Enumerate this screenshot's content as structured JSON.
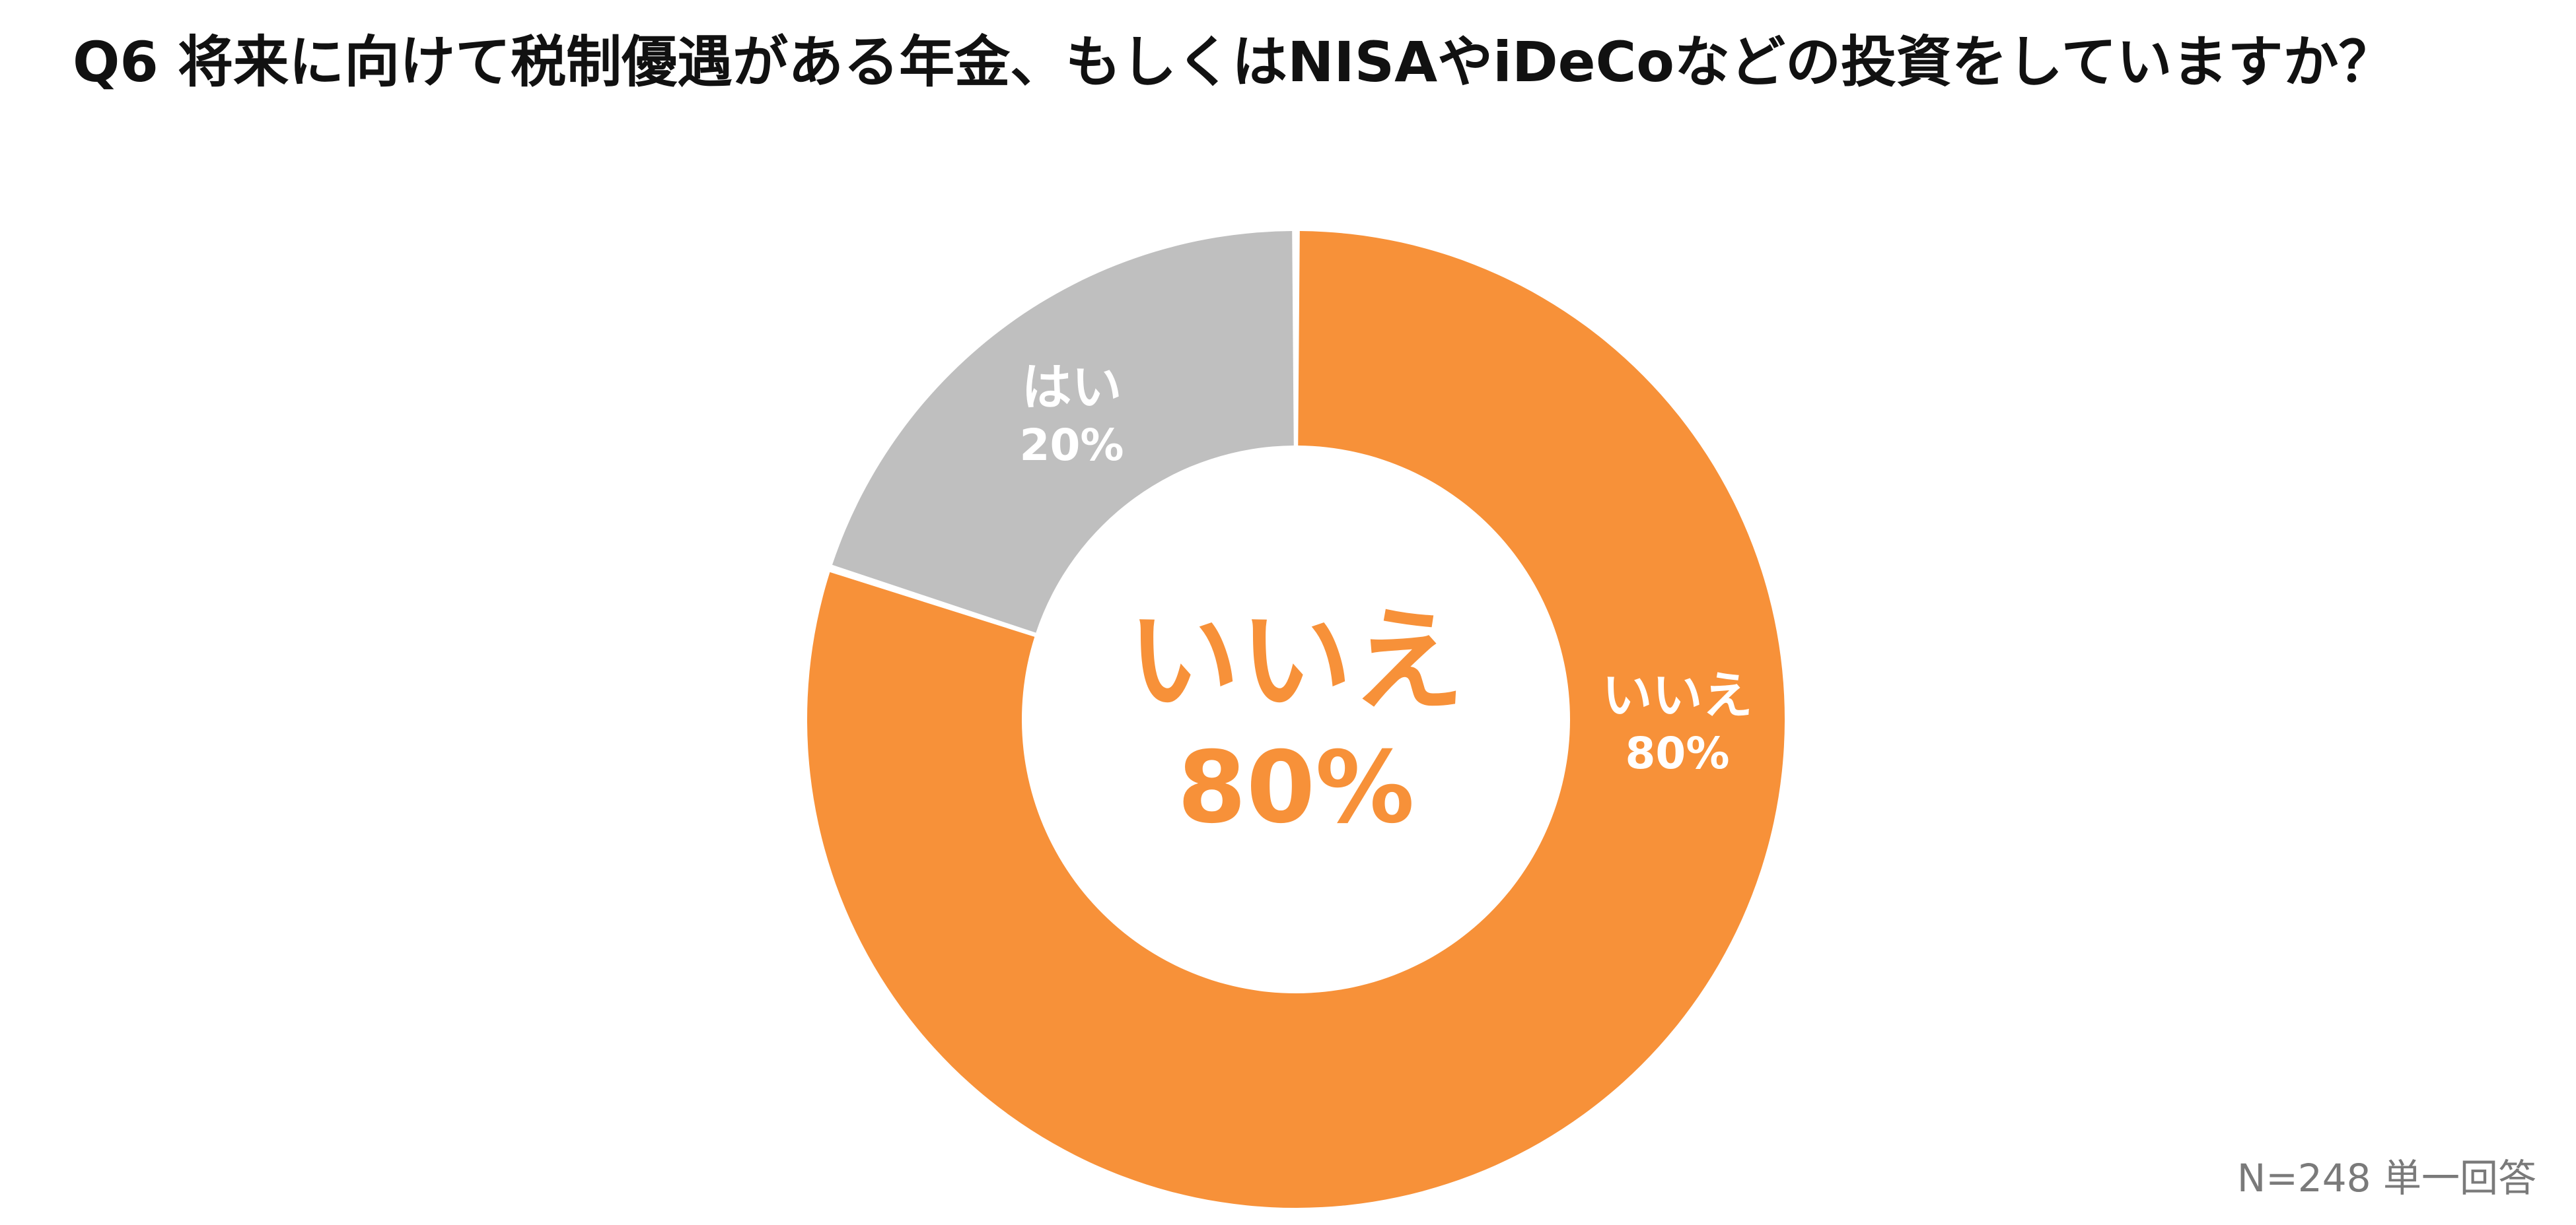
{
  "header": {
    "title": "Q6 将来に向けて税制優遇がある年金、もしくはNISAやiDeCoなどの投資をしていますか？"
  },
  "footer": {
    "note": "N=248 単一回答"
  },
  "colors": {
    "yes": "#bfbfbf",
    "no": "#f79139",
    "slice_label": "#ffffff",
    "center_text": "#f79139"
  },
  "chart_data": {
    "type": "pie",
    "donut": true,
    "categories": [
      "いいえ",
      "はい"
    ],
    "values": [
      80,
      20
    ],
    "value_labels": [
      "80%",
      "20%"
    ],
    "center_label": {
      "category": "いいえ",
      "value": "80%"
    }
  }
}
